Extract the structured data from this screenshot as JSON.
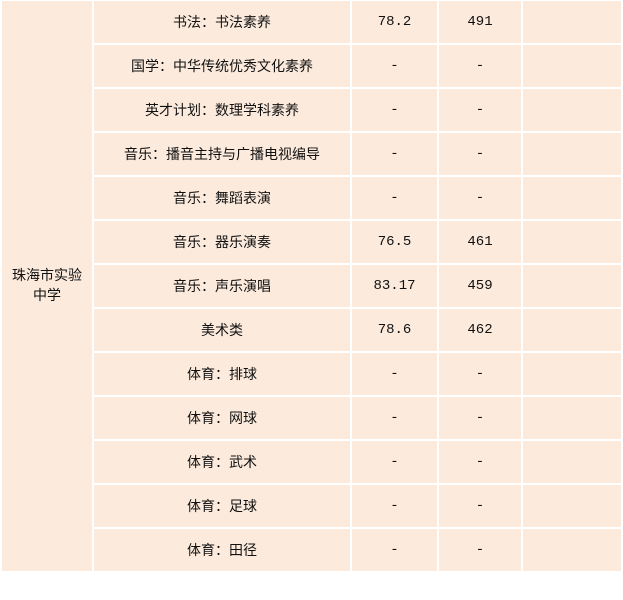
{
  "school": "珠海市实验中学",
  "rows": [
    {
      "program": "书法：书法素养",
      "score": "78.2",
      "rank": "491"
    },
    {
      "program": "国学：中华传统优秀文化素养",
      "score": "-",
      "rank": "-"
    },
    {
      "program": "英才计划：数理学科素养",
      "score": "-",
      "rank": "-"
    },
    {
      "program": "音乐：播音主持与广播电视编导",
      "score": "-",
      "rank": "-"
    },
    {
      "program": "音乐：舞蹈表演",
      "score": "-",
      "rank": "-"
    },
    {
      "program": "音乐：器乐演奏",
      "score": "76.5",
      "rank": "461"
    },
    {
      "program": "音乐：声乐演唱",
      "score": "83.17",
      "rank": "459"
    },
    {
      "program": "美术类",
      "score": "78.6",
      "rank": "462"
    },
    {
      "program": "体育：排球",
      "score": "-",
      "rank": "-"
    },
    {
      "program": "体育：网球",
      "score": "-",
      "rank": "-"
    },
    {
      "program": "体育：武术",
      "score": "-",
      "rank": "-"
    },
    {
      "program": "体育：足球",
      "score": "-",
      "rank": "-"
    },
    {
      "program": "体育：田径",
      "score": "-",
      "rank": "-"
    }
  ]
}
